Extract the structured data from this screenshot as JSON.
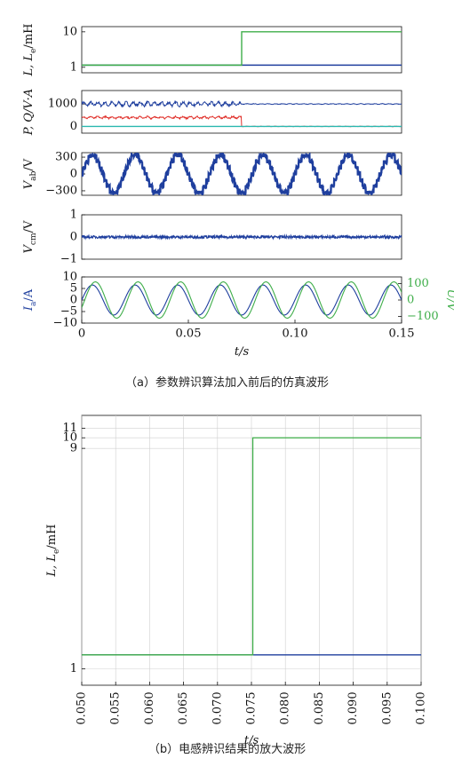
{
  "colors": {
    "blue": "#1f3f9e",
    "green": "#3fae4a",
    "red": "#e0302a",
    "cyan": "#2bb8b0",
    "grid": "#d0d0d0"
  },
  "chart_data": [
    {
      "id": "a1",
      "type": "line",
      "ylabel": "L, L_e/mH",
      "xlim": [
        0,
        0.15
      ],
      "ylim": [
        0.7,
        14
      ],
      "yscale": "log",
      "yticks": [
        "10",
        "1"
      ],
      "ytick_values": [
        10,
        1
      ],
      "series": [
        {
          "color": "#1f3f9e",
          "x": [
            0,
            0.075,
            0.075,
            0.15
          ],
          "y": [
            1.15,
            1.15,
            1.15,
            1.15
          ]
        },
        {
          "color": "#3fae4a",
          "x": [
            0,
            0.075,
            0.075,
            0.15
          ],
          "y": [
            1.15,
            1.15,
            10,
            10
          ]
        }
      ]
    },
    {
      "id": "a2",
      "type": "line",
      "ylabel": "P, Q/V·A",
      "xlim": [
        0,
        0.15
      ],
      "ylim": [
        -300,
        1600
      ],
      "yticks": [
        "1000",
        "0"
      ],
      "ytick_values": [
        1000,
        0
      ],
      "series": [
        {
          "color": "#1f3f9e",
          "x": [
            0,
            0.075,
            0.075,
            0.15
          ],
          "y": [
            1000,
            1000,
            1000,
            1000
          ],
          "ripple_before": 150,
          "ripple_after": 25
        },
        {
          "color": "#e0302a",
          "x": [
            0,
            0.075,
            0.075,
            0.15
          ],
          "y": [
            400,
            400,
            0,
            0
          ],
          "ripple_before": 80,
          "ripple_after": 15
        },
        {
          "color": "#2bb8b0",
          "x": [
            0,
            0.15
          ],
          "y": [
            0,
            0
          ]
        }
      ]
    },
    {
      "id": "a3",
      "type": "line",
      "ylabel": "V_ab/V",
      "xlim": [
        0,
        0.15
      ],
      "ylim": [
        -380,
        380
      ],
      "yticks": [
        "300",
        "0",
        "-300"
      ],
      "ytick_values": [
        300,
        0,
        -300
      ],
      "series": [
        {
          "color": "#1f3f9e",
          "waveform": "multilevel",
          "amplitude": 330,
          "frequency_hz": 50
        }
      ]
    },
    {
      "id": "a4",
      "type": "line",
      "ylabel": "V_cm/V",
      "xlim": [
        0,
        0.15
      ],
      "ylim": [
        -1,
        1
      ],
      "yticks": [
        "1",
        "0",
        "-1"
      ],
      "ytick_values": [
        1,
        0,
        -1
      ],
      "series": [
        {
          "color": "#1f3f9e",
          "waveform": "noise",
          "amplitude": 0.06
        }
      ]
    },
    {
      "id": "a5",
      "type": "line",
      "ylabel": "I_a/A",
      "y2label": "U/V",
      "xlabel": "t/s",
      "xlim": [
        0,
        0.15
      ],
      "ylim": [
        -10,
        10
      ],
      "y2lim": [
        -140,
        140
      ],
      "yticks": [
        "10",
        "5",
        "0",
        "-5",
        "-10"
      ],
      "ytick_values": [
        10,
        5,
        0,
        -5,
        -10
      ],
      "y2ticks": [
        "100",
        "0",
        "-100"
      ],
      "y2tick_values": [
        100,
        0,
        -100
      ],
      "xticks": [
        "0",
        "0.05",
        "0.10",
        "0.15"
      ],
      "xtick_values": [
        0,
        0.05,
        0.1,
        0.15
      ],
      "series": [
        {
          "color": "#1f3f9e",
          "waveform": "sine",
          "amplitude": 6.5,
          "frequency_hz": 50,
          "axis": "left"
        },
        {
          "color": "#3fae4a",
          "waveform": "sine",
          "amplitude": 110,
          "frequency_hz": 50,
          "phase_deg": -25,
          "axis": "right"
        }
      ]
    },
    {
      "id": "b",
      "type": "line",
      "ylabel": "L, L_e/mH",
      "xlabel": "t/s",
      "xlim": [
        0.05,
        0.1
      ],
      "ylim": [
        0.85,
        12.5
      ],
      "yscale": "log",
      "yticks": [
        "11",
        "10",
        "9",
        "1"
      ],
      "ytick_values": [
        11,
        10,
        9,
        1
      ],
      "xticks": [
        "0.050",
        "0.055",
        "0.060",
        "0.065",
        "0.070",
        "0.075",
        "0.080",
        "0.085",
        "0.090",
        "0.095",
        "0.100"
      ],
      "xtick_values": [
        0.05,
        0.055,
        0.06,
        0.065,
        0.07,
        0.075,
        0.08,
        0.085,
        0.09,
        0.095,
        0.1
      ],
      "grid": true,
      "series": [
        {
          "color": "#1f3f9e",
          "x": [
            0.05,
            0.1
          ],
          "y": [
            1.15,
            1.15
          ]
        },
        {
          "color": "#3fae4a",
          "x": [
            0.05,
            0.0752,
            0.0752,
            0.1
          ],
          "y": [
            1.15,
            1.15,
            10,
            10
          ]
        }
      ]
    }
  ],
  "captions": {
    "a": "（a）参数辨识算法加入前后的仿真波形",
    "b": "（b）电感辨识结果的放大波形"
  }
}
